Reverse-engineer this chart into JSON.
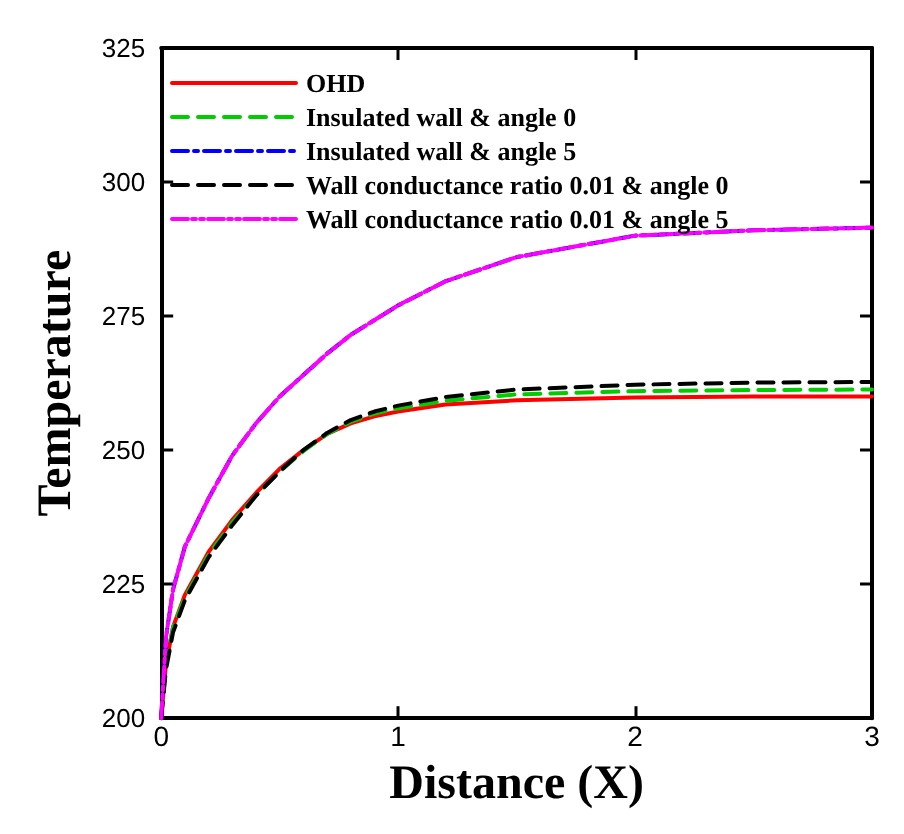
{
  "chart_data": {
    "type": "line",
    "xlabel": "Distance (X)",
    "ylabel": "Temperature",
    "xlim": [
      0,
      3
    ],
    "xticks": [
      0,
      1,
      2,
      3
    ],
    "ylim": [
      200,
      325
    ],
    "yticks": [
      200,
      225,
      250,
      275,
      300,
      325
    ],
    "grid": false,
    "legend": "top left",
    "marker": "none",
    "series": [
      {
        "name": "OHD",
        "color": "#ff0000",
        "line_style": "solid",
        "x": [
          0,
          0.02,
          0.05,
          0.1,
          0.2,
          0.3,
          0.4,
          0.5,
          0.6,
          0.7,
          0.8,
          0.9,
          1,
          1.2,
          1.5,
          2,
          2.5,
          3
        ],
        "values": [
          200,
          210,
          217,
          223,
          231,
          237,
          242,
          246.5,
          250,
          253,
          255,
          256.3,
          257.2,
          258.5,
          259.3,
          259.8,
          260,
          260
        ]
      },
      {
        "name": "Insulated wall & angle 0",
        "color": "#00cc00",
        "line_style": "dashed",
        "x": [
          0,
          0.02,
          0.05,
          0.1,
          0.2,
          0.3,
          0.4,
          0.5,
          0.6,
          0.7,
          0.8,
          0.9,
          1,
          1.2,
          1.5,
          2,
          2.5,
          3
        ],
        "values": [
          200,
          210,
          217,
          222.5,
          230.5,
          236.5,
          241.5,
          246,
          249.8,
          253,
          255.3,
          256.8,
          257.8,
          259.2,
          260.4,
          261,
          261.2,
          261.3
        ]
      },
      {
        "name": "Insulated wall & angle 5",
        "color": "#0000ff",
        "line_style": "dashdot",
        "x": [
          0,
          0.02,
          0.05,
          0.1,
          0.2,
          0.3,
          0.4,
          0.5,
          0.6,
          0.7,
          0.8,
          1,
          1.2,
          1.5,
          2,
          2.5,
          3
        ],
        "values": [
          200,
          215,
          224,
          232,
          241,
          249,
          255,
          260,
          264,
          268,
          271.5,
          277,
          281.5,
          286,
          290,
          291,
          291.5
        ]
      },
      {
        "name": "Wall conductance ratio 0.01 & angle 0",
        "color": "#000000",
        "line_style": "dashed",
        "x": [
          0,
          0.02,
          0.05,
          0.1,
          0.2,
          0.3,
          0.4,
          0.5,
          0.6,
          0.7,
          0.8,
          0.9,
          1,
          1.2,
          1.5,
          2,
          2.5,
          3
        ],
        "values": [
          200,
          209,
          216,
          222,
          230,
          236,
          241.5,
          246,
          250,
          253.2,
          255.6,
          257.2,
          258.3,
          259.9,
          261.3,
          262.2,
          262.6,
          262.7
        ]
      },
      {
        "name": "Wall conductance ratio 0.01 & angle 5",
        "color": "#ff00ff",
        "line_style": "dashdotdot",
        "x": [
          0,
          0.02,
          0.05,
          0.1,
          0.2,
          0.3,
          0.4,
          0.5,
          0.6,
          0.7,
          0.8,
          1,
          1.2,
          1.5,
          2,
          2.5,
          3
        ],
        "values": [
          200,
          215,
          224,
          232,
          241,
          249,
          255,
          260,
          264,
          268,
          271.5,
          277,
          281.5,
          286,
          290,
          291,
          291.5
        ]
      }
    ]
  }
}
